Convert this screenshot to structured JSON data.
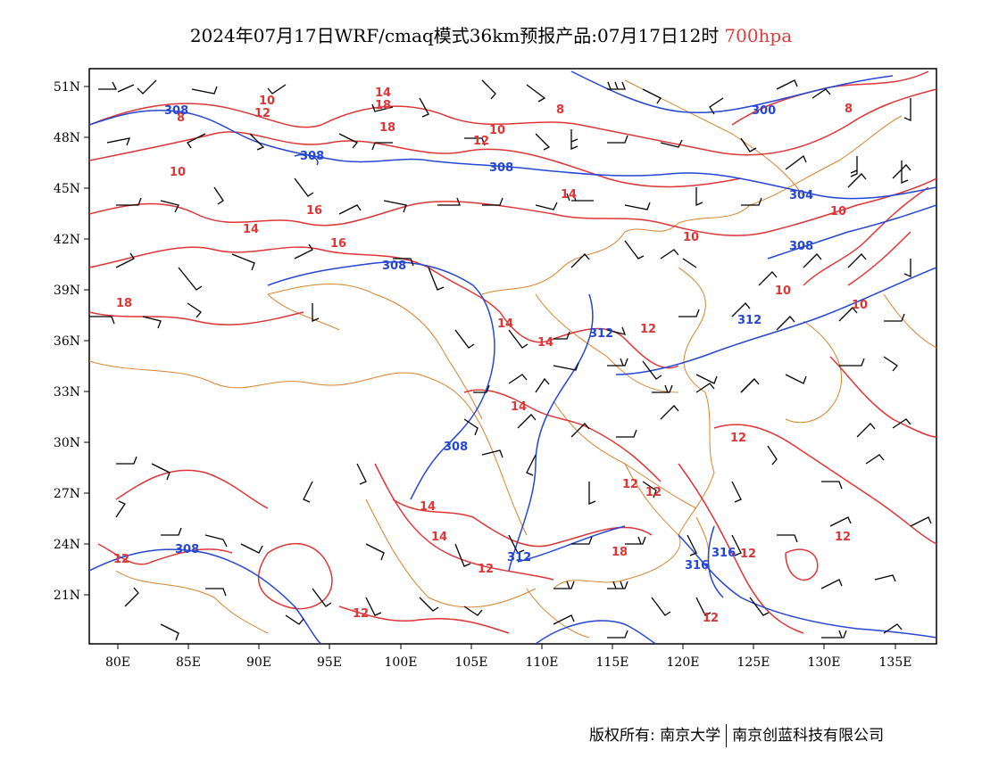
{
  "title": {
    "main": "2024年07月17日WRF/cmaq模式36km预报产品:07月17日12时",
    "level": "700hpa"
  },
  "colors": {
    "temperature_contour": "#e03535",
    "height_contour": "#2346d6",
    "boundary": "#d9822b",
    "wind_barb": "#000000"
  },
  "axes": {
    "x_ticks": [
      "80E",
      "85E",
      "90E",
      "95E",
      "100E",
      "105E",
      "110E",
      "115E",
      "120E",
      "125E",
      "130E",
      "135E"
    ],
    "y_ticks": [
      "51N",
      "48N",
      "45N",
      "42N",
      "39N",
      "36N",
      "33N",
      "30N",
      "27N",
      "24N",
      "21N"
    ]
  },
  "temperature_labels": [
    "10",
    "14",
    "18",
    "12",
    "18",
    "16",
    "14",
    "16",
    "12",
    "10",
    "14",
    "10",
    "10",
    "8",
    "8",
    "10",
    "14",
    "18",
    "14",
    "14",
    "12",
    "14",
    "14",
    "12",
    "12",
    "12",
    "12",
    "12",
    "18",
    "12",
    "12",
    "12",
    "12",
    "8",
    "10",
    "10"
  ],
  "height_labels": [
    "308",
    "308",
    "308",
    "308",
    "300",
    "304",
    "308",
    "312",
    "312",
    "308",
    "312",
    "316",
    "316"
  ],
  "footer": {
    "copyright": "版权所有: 南京大学",
    "company": "南京创蓝科技有限公司"
  }
}
